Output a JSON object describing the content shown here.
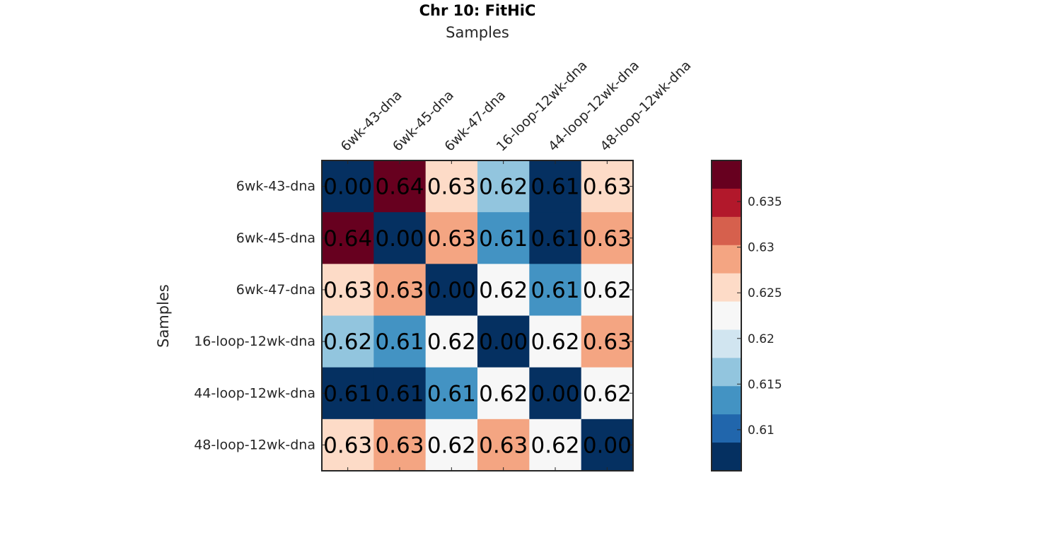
{
  "chart_data": {
    "type": "heatmap",
    "title": "Chr 10: FitHiC",
    "xlabel": "Samples",
    "ylabel": "Samples",
    "categories": [
      "6wk-43-dna",
      "6wk-45-dna",
      "6wk-47-dna",
      "16-loop-12wk-dna",
      "44-loop-12wk-dna",
      "48-loop-12wk-dna"
    ],
    "values": [
      [
        0.0,
        0.64,
        0.63,
        0.62,
        0.61,
        0.63
      ],
      [
        0.64,
        0.0,
        0.63,
        0.61,
        0.61,
        0.63
      ],
      [
        0.63,
        0.63,
        0.0,
        0.62,
        0.61,
        0.62
      ],
      [
        0.62,
        0.61,
        0.62,
        0.0,
        0.62,
        0.63
      ],
      [
        0.61,
        0.61,
        0.61,
        0.62,
        0.0,
        0.62
      ],
      [
        0.63,
        0.63,
        0.62,
        0.63,
        0.62,
        0.0
      ]
    ],
    "cell_colors": [
      [
        "#053061",
        "#67001f",
        "#fddbc7",
        "#92c5de",
        "#053061",
        "#fddbc7"
      ],
      [
        "#67001f",
        "#053061",
        "#f4a582",
        "#4393c3",
        "#053061",
        "#f4a582"
      ],
      [
        "#fddbc7",
        "#f4a582",
        "#053061",
        "#f7f7f7",
        "#4393c3",
        "#f7f7f7"
      ],
      [
        "#92c5de",
        "#4393c3",
        "#f7f7f7",
        "#053061",
        "#f7f7f7",
        "#f4a582"
      ],
      [
        "#053061",
        "#053061",
        "#4393c3",
        "#f7f7f7",
        "#053061",
        "#f7f7f7"
      ],
      [
        "#fddbc7",
        "#f4a582",
        "#f7f7f7",
        "#f4a582",
        "#f7f7f7",
        "#053061"
      ]
    ],
    "colorbar": {
      "colors_top_to_bottom": [
        "#67001f",
        "#b2182b",
        "#d6604d",
        "#f4a582",
        "#fddbc7",
        "#f7f7f7",
        "#d1e5f0",
        "#92c5de",
        "#4393c3",
        "#2166ac",
        "#053061"
      ],
      "range": [
        0.6055,
        0.6395
      ],
      "tick_values": [
        0.635,
        0.63,
        0.625,
        0.62,
        0.615,
        0.61
      ],
      "tick_labels": [
        "0.635",
        "0.63",
        "0.625",
        "0.62",
        "0.615",
        "0.61"
      ]
    }
  }
}
